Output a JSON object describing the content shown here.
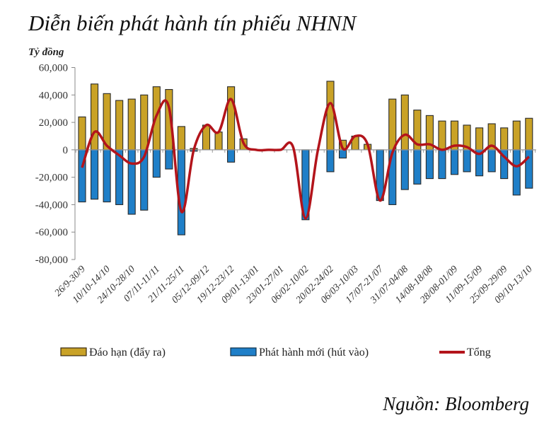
{
  "chart_data": {
    "type": "bar",
    "title": "Diễn biến phát hành tín phiếu NHNN",
    "ylabel": "Tỷ đồng",
    "source": "Nguồn: Bloomberg",
    "ylim": [
      -80000,
      60000
    ],
    "yticks": [
      60000,
      40000,
      20000,
      0,
      -20000,
      -40000,
      -60000,
      -80000
    ],
    "ytick_labels": [
      "60,000",
      "40,000",
      "20,000",
      "0",
      "-20,000",
      "-40,000",
      "-60,000",
      "-80,000"
    ],
    "x_tick_labels": [
      "26/9-30/9",
      "10/10-14/10",
      "24/10-28/10",
      "07/11-11/11",
      "21/11-25/11",
      "05/12-09/12",
      "19/12-23/12",
      "09/01-13/01",
      "23/01-27/01",
      "06/02-10/02",
      "20/02-24/02",
      "06/03-10/03",
      "17/07-21/07",
      "31/07-04/08",
      "14/08-18/08",
      "28/08-01/09",
      "11/09-15/09",
      "25/09-29/09",
      "09/10-13/10"
    ],
    "x_tick_every": 2,
    "legend_placement": "bottom",
    "grid": false,
    "series": [
      {
        "name": "Đáo hạn (đẩy ra)",
        "type": "bar",
        "color": "#C9A227",
        "values": [
          24000,
          48000,
          41000,
          36000,
          37000,
          40000,
          46000,
          44000,
          17000,
          1000,
          18000,
          13000,
          46000,
          8000,
          0,
          0,
          0,
          0,
          0,
          0,
          50000,
          7000,
          10000,
          4000,
          0,
          37000,
          40000,
          29000,
          25000,
          21000,
          21000,
          18000,
          16000,
          19000,
          16000,
          21000,
          23000
        ]
      },
      {
        "name": "Phát hành mới (hút vào)",
        "type": "bar",
        "color": "#1F7FC8",
        "values": [
          -38000,
          -36000,
          -38000,
          -40000,
          -47000,
          -44000,
          -20000,
          -14000,
          -62000,
          -1000,
          0,
          0,
          -9000,
          0,
          0,
          0,
          0,
          0,
          -51000,
          0,
          -16000,
          -6000,
          0,
          0,
          -37000,
          -40000,
          -29000,
          -25000,
          -21000,
          -21000,
          -18000,
          -16000,
          -19000,
          -16000,
          -21000,
          -33000,
          -28000
        ]
      },
      {
        "name": "Tổng",
        "type": "line",
        "color": "#B3141B",
        "values": [
          -13000,
          13000,
          3000,
          -4000,
          -10000,
          -5000,
          25000,
          31000,
          -45000,
          0,
          18000,
          13000,
          37000,
          5000,
          0,
          0,
          0,
          2000,
          -50000,
          0,
          34000,
          1000,
          10000,
          4000,
          -37000,
          -2000,
          11000,
          4000,
          4000,
          0,
          3000,
          2000,
          -3000,
          3000,
          -5000,
          -12000,
          -5000
        ]
      }
    ]
  }
}
